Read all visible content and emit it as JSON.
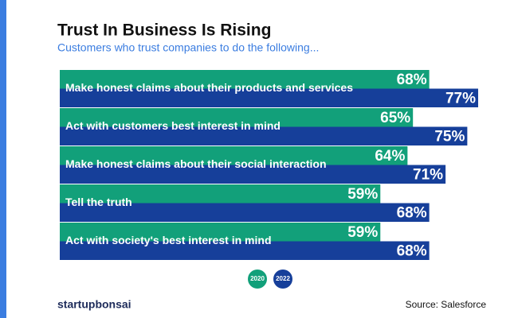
{
  "chart_data": {
    "type": "hbar",
    "title": "Trust In Business Is Rising",
    "subtitle": "Customers who trust companies to do the following...",
    "categories": [
      "Make honest claims about their products and services",
      "Act with customers best interest in mind",
      "Make honest claims about their social interaction",
      "Tell the truth",
      "Act with society's best interest in mind"
    ],
    "series": [
      {
        "name": "2020",
        "color": "#12a07a",
        "values": [
          68,
          65,
          64,
          59,
          59
        ],
        "value_labels": [
          "68%",
          "65%",
          "64%",
          "59%",
          "59%"
        ]
      },
      {
        "name": "2022",
        "color": "#163f9a",
        "values": [
          77,
          75,
          71,
          68,
          68
        ],
        "value_labels": [
          "77%",
          "75%",
          "71%",
          "68%",
          "68%"
        ]
      }
    ],
    "brand": "startupbonsai",
    "source": "Source: Salesforce"
  }
}
